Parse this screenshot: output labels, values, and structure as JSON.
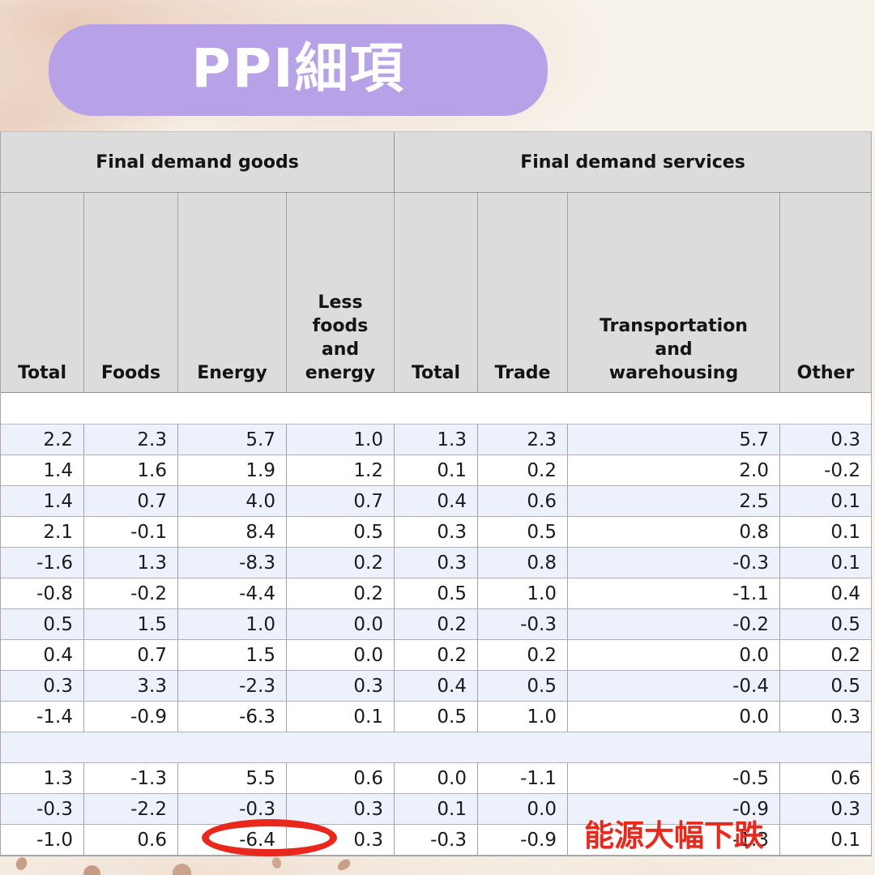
{
  "title": {
    "label": "PPI細項"
  },
  "chart_data": {
    "type": "table",
    "title": "PPI細項",
    "column_groups": [
      "Final demand goods",
      "Final demand services"
    ],
    "column_group_spans": [
      4,
      4
    ],
    "columns": [
      "Total",
      "Foods",
      "Energy",
      "Less\nfoods\nand\nenergy",
      "Total",
      "Trade",
      "Transportation\nand\nwarehousing",
      "Other"
    ],
    "rows": [
      [
        "2.2",
        "2.3",
        "5.7",
        "1.0",
        "1.3",
        "2.3",
        "5.7",
        "0.3"
      ],
      [
        "1.4",
        "1.6",
        "1.9",
        "1.2",
        "0.1",
        "0.2",
        "2.0",
        "-0.2"
      ],
      [
        "1.4",
        "0.7",
        "4.0",
        "0.7",
        "0.4",
        "0.6",
        "2.5",
        "0.1"
      ],
      [
        "2.1",
        "-0.1",
        "8.4",
        "0.5",
        "0.3",
        "0.5",
        "0.8",
        "0.1"
      ],
      [
        "-1.6",
        "1.3",
        "-8.3",
        "0.2",
        "0.3",
        "0.8",
        "-0.3",
        "0.1"
      ],
      [
        "-0.8",
        "-0.2",
        "-4.4",
        "0.2",
        "0.5",
        "1.0",
        "-1.1",
        "0.4"
      ],
      [
        "0.5",
        "1.5",
        "1.0",
        "0.0",
        "0.2",
        "-0.3",
        "-0.2",
        "0.5"
      ],
      [
        "0.4",
        "0.7",
        "1.5",
        "0.0",
        "0.2",
        "0.2",
        "0.0",
        "0.2"
      ],
      [
        "0.3",
        "3.3",
        "-2.3",
        "0.3",
        "0.4",
        "0.5",
        "-0.4",
        "0.5"
      ],
      [
        "-1.4",
        "-0.9",
        "-6.3",
        "0.1",
        "0.5",
        "1.0",
        "0.0",
        "0.3"
      ],
      [
        "1.3",
        "-1.3",
        "5.5",
        "0.6",
        "0.0",
        "-1.1",
        "-0.5",
        "0.6"
      ],
      [
        "-0.3",
        "-2.2",
        "-0.3",
        "0.3",
        "0.1",
        "0.0",
        "-0.9",
        "0.3"
      ],
      [
        "-1.0",
        "0.6",
        "-6.4",
        "0.3",
        "-0.3",
        "-0.9",
        "-1.3",
        "0.1"
      ]
    ],
    "spacer_before_row": 10,
    "annotations": [
      {
        "text": "能源大幅下跌",
        "circled_value": "-6.4",
        "circled_column": "Energy",
        "circled_row": 13
      }
    ],
    "layout_hints": {
      "row_striping": "alternating blue/white",
      "grid": true
    }
  },
  "annotation": {
    "note": "能源大幅下跌"
  },
  "colors": {
    "title_bg": "#b7a2e8",
    "title_text": "#ffffff",
    "header_bg": "#dcdcdc",
    "row_blue": "#edf1fb",
    "row_white": "#ffffff",
    "annotation_red": "#e8291d",
    "background": "#f7f2ea"
  }
}
